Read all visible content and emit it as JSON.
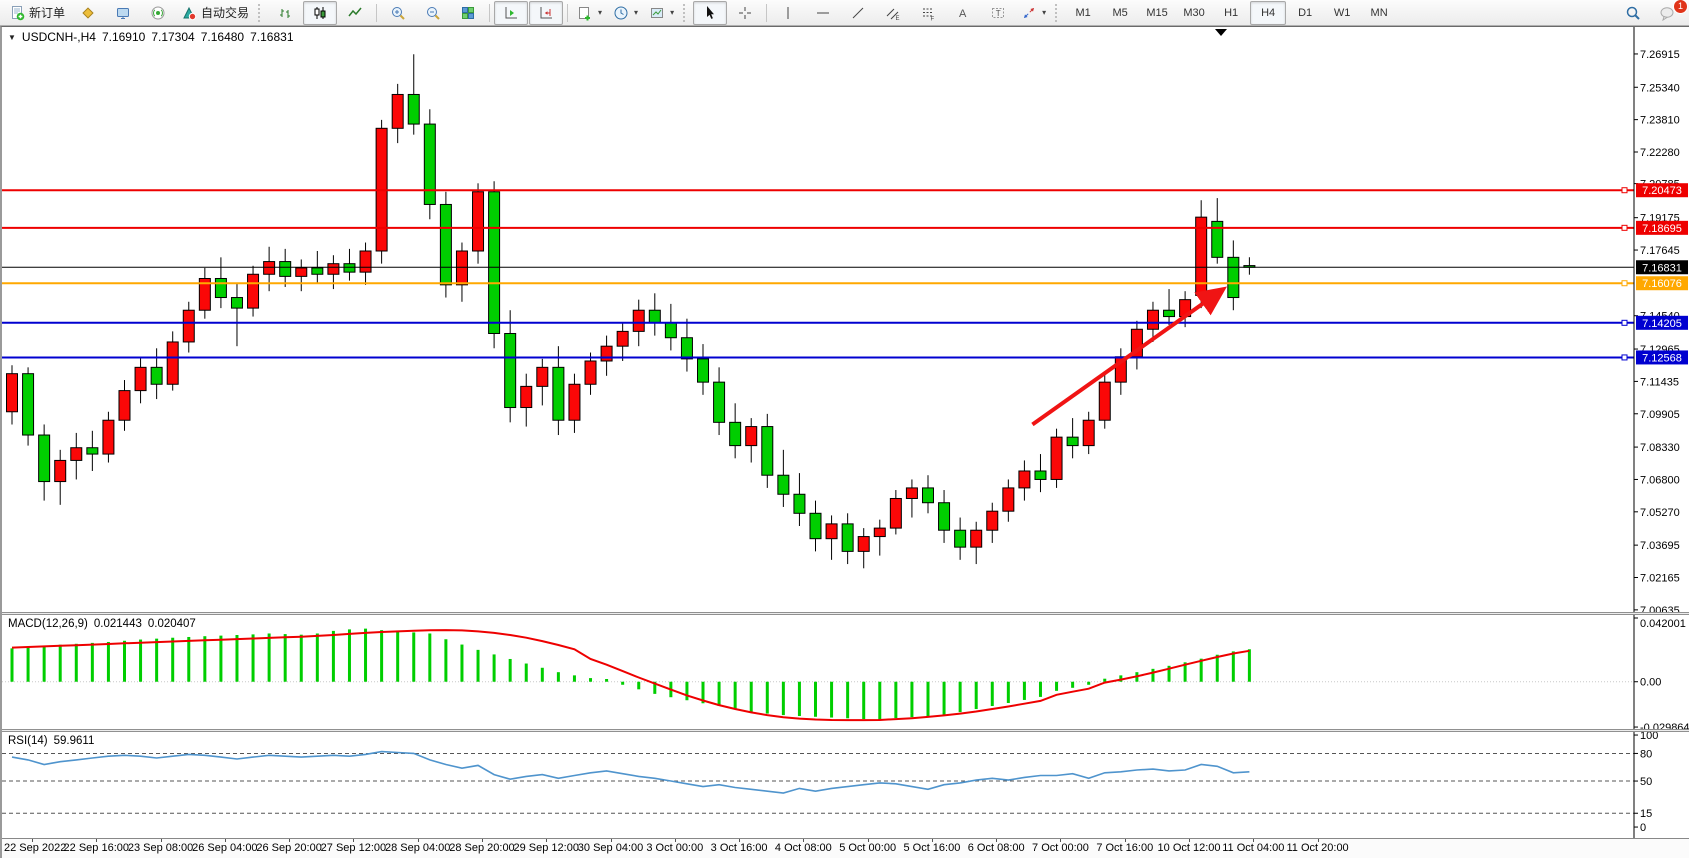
{
  "toolbar": {
    "new_order_label": "新订单",
    "auto_trading_label": "自动交易",
    "timeframes": [
      "M1",
      "M5",
      "M15",
      "M30",
      "H1",
      "H4",
      "D1",
      "W1",
      "MN"
    ],
    "active_timeframe": "H4",
    "notification_badge": "1",
    "icons": {
      "new-order-icon": "document-with-green-plus",
      "market-watch-icon": "gold-diamond",
      "navigator-icon": "blue-monitor",
      "signals-icon": "radio-broadcast",
      "auto-trading-icon": "teal-cone-red-ball",
      "bar-chart-icon": "ohlc-bars",
      "candlestick-chart-icon": "two-candles",
      "line-chart-icon": "zigzag-line",
      "zoom-in-icon": "magnifier-plus",
      "zoom-out-icon": "magnifier-minus",
      "tile-windows-icon": "window-grid",
      "auto-scroll-icon": "axis-green-triangle",
      "chart-shift-icon": "axis-red-arrow",
      "indicators-icon": "frame-green-plus",
      "periods-icon": "clock",
      "templates-icon": "chart-thumbnail",
      "cursor-icon": "pointer-arrow",
      "crosshair-icon": "crosshair",
      "vertical-line-icon": "vertical-bar",
      "horizontal-line-icon": "horizontal-bar",
      "trendline-icon": "diagonal-line",
      "channel-icon": "parallel-lines-E",
      "fibonacci-icon": "dashed-lines-F",
      "text-icon": "letter-A",
      "label-icon": "boxed-T",
      "arrows-icon": "arrow-shapes",
      "search-icon": "magnifier",
      "chat-icon": "speech-bubble-with-badge"
    }
  },
  "chart": {
    "symbol_period": "USDCNH-,H4",
    "ohlc": {
      "open": "7.16910",
      "high": "7.17304",
      "low": "7.16480",
      "close": "7.16831"
    }
  },
  "indicators": {
    "macd": {
      "name": "MACD(12,26,9)",
      "value_main": "0.021443",
      "value_signal": "0.020407"
    },
    "rsi": {
      "name": "RSI(14)",
      "value": "59.9611"
    }
  },
  "chart_data": [
    {
      "type": "candlestick",
      "title": "USDCNH-,H4",
      "ylim": [
        7.00534,
        7.28189
      ],
      "y_ticks": [
        "7.26915",
        "7.25340",
        "7.23810",
        "7.22280",
        "7.20785",
        "7.19175",
        "7.17645",
        "7.14540",
        "7.12965",
        "7.11435",
        "7.09905",
        "7.08330",
        "7.06800",
        "7.05270",
        "7.03695",
        "7.02165",
        "7.00635"
      ],
      "x_labels": [
        "22 Sep 2022",
        "22 Sep 16:00",
        "23 Sep 08:00",
        "26 Sep 04:00",
        "26 Sep 20:00",
        "27 Sep 12:00",
        "28 Sep 04:00",
        "28 Sep 20:00",
        "29 Sep 12:00",
        "30 Sep 04:00",
        "3 Oct 00:00",
        "3 Oct 16:00",
        "4 Oct 08:00",
        "5 Oct 00:00",
        "5 Oct 16:00",
        "6 Oct 08:00",
        "7 Oct 00:00",
        "7 Oct 16:00",
        "10 Oct 12:00",
        "11 Oct 04:00",
        "11 Oct 20:00"
      ],
      "levels": [
        {
          "price": 7.20473,
          "label": "7.20473",
          "color": "#ee0000"
        },
        {
          "price": 7.18695,
          "label": "7.18695",
          "color": "#ee0000"
        },
        {
          "price": 7.16076,
          "label": "7.16076",
          "color": "#ffa800"
        },
        {
          "price": 7.14205,
          "label": "7.14205",
          "color": "#0000d0"
        },
        {
          "price": 7.12568,
          "label": "7.12568",
          "color": "#0000d0"
        }
      ],
      "current_price": {
        "price": 7.16831,
        "label": "7.16831",
        "color": "#000000"
      },
      "arrow": {
        "from_index": 63.5,
        "from_price": 7.094,
        "to_index": 75.2,
        "to_price": 7.157,
        "color": "#f01414"
      },
      "colors": {
        "up": "#fb0707",
        "down": "#00ce00",
        "wick": "#000000"
      },
      "candles": [
        [
          7.1,
          7.122,
          7.094,
          7.118
        ],
        [
          7.118,
          7.121,
          7.084,
          7.089
        ],
        [
          7.089,
          7.094,
          7.058,
          7.067
        ],
        [
          7.067,
          7.082,
          7.056,
          7.077
        ],
        [
          7.077,
          7.09,
          7.068,
          7.083
        ],
        [
          7.083,
          7.091,
          7.072,
          7.08
        ],
        [
          7.08,
          7.1,
          7.076,
          7.096
        ],
        [
          7.096,
          7.115,
          7.091,
          7.11
        ],
        [
          7.11,
          7.126,
          7.104,
          7.121
        ],
        [
          7.121,
          7.13,
          7.106,
          7.113
        ],
        [
          7.113,
          7.138,
          7.11,
          7.133
        ],
        [
          7.133,
          7.152,
          7.128,
          7.148
        ],
        [
          7.148,
          7.168,
          7.144,
          7.163
        ],
        [
          7.163,
          7.173,
          7.149,
          7.154
        ],
        [
          7.154,
          7.161,
          7.131,
          7.149
        ],
        [
          7.149,
          7.169,
          7.145,
          7.165
        ],
        [
          7.165,
          7.178,
          7.157,
          7.171
        ],
        [
          7.171,
          7.177,
          7.159,
          7.164
        ],
        [
          7.164,
          7.172,
          7.157,
          7.168
        ],
        [
          7.168,
          7.176,
          7.161,
          7.165
        ],
        [
          7.165,
          7.174,
          7.158,
          7.17
        ],
        [
          7.17,
          7.177,
          7.162,
          7.166
        ],
        [
          7.166,
          7.18,
          7.16,
          7.176
        ],
        [
          7.176,
          7.238,
          7.17,
          7.234
        ],
        [
          7.234,
          7.255,
          7.227,
          7.25
        ],
        [
          7.25,
          7.269,
          7.231,
          7.236
        ],
        [
          7.236,
          7.243,
          7.191,
          7.198
        ],
        [
          7.198,
          7.204,
          7.154,
          7.16
        ],
        [
          7.16,
          7.18,
          7.152,
          7.176
        ],
        [
          7.176,
          7.208,
          7.17,
          7.204
        ],
        [
          7.204,
          7.209,
          7.13,
          7.137
        ],
        [
          7.137,
          7.148,
          7.095,
          7.102
        ],
        [
          7.102,
          7.118,
          7.093,
          7.112
        ],
        [
          7.112,
          7.125,
          7.103,
          7.121
        ],
        [
          7.121,
          7.131,
          7.089,
          7.096
        ],
        [
          7.096,
          7.118,
          7.09,
          7.113
        ],
        [
          7.113,
          7.128,
          7.108,
          7.124
        ],
        [
          7.124,
          7.136,
          7.117,
          7.131
        ],
        [
          7.131,
          7.142,
          7.124,
          7.138
        ],
        [
          7.138,
          7.153,
          7.131,
          7.148
        ],
        [
          7.148,
          7.156,
          7.136,
          7.142
        ],
        [
          7.142,
          7.151,
          7.129,
          7.135
        ],
        [
          7.135,
          7.144,
          7.119,
          7.125
        ],
        [
          7.125,
          7.132,
          7.108,
          7.114
        ],
        [
          7.114,
          7.121,
          7.089,
          7.095
        ],
        [
          7.095,
          7.104,
          7.078,
          7.084
        ],
        [
          7.084,
          7.097,
          7.076,
          7.093
        ],
        [
          7.093,
          7.099,
          7.064,
          7.07
        ],
        [
          7.07,
          7.082,
          7.055,
          7.061
        ],
        [
          7.061,
          7.071,
          7.046,
          7.052
        ],
        [
          7.052,
          7.058,
          7.034,
          7.04
        ],
        [
          7.04,
          7.051,
          7.03,
          7.047
        ],
        [
          7.047,
          7.052,
          7.028,
          7.034
        ],
        [
          7.034,
          7.045,
          7.026,
          7.041
        ],
        [
          7.041,
          7.049,
          7.032,
          7.045
        ],
        [
          7.045,
          7.063,
          7.042,
          7.059
        ],
        [
          7.059,
          7.068,
          7.05,
          7.064
        ],
        [
          7.064,
          7.07,
          7.052,
          7.057
        ],
        [
          7.057,
          7.063,
          7.038,
          7.044
        ],
        [
          7.044,
          7.05,
          7.03,
          7.036
        ],
        [
          7.036,
          7.048,
          7.028,
          7.044
        ],
        [
          7.044,
          7.057,
          7.038,
          7.053
        ],
        [
          7.053,
          7.068,
          7.048,
          7.064
        ],
        [
          7.064,
          7.077,
          7.058,
          7.072
        ],
        [
          7.072,
          7.08,
          7.062,
          7.068
        ],
        [
          7.068,
          7.092,
          7.064,
          7.088
        ],
        [
          7.088,
          7.097,
          7.078,
          7.084
        ],
        [
          7.084,
          7.1,
          7.08,
          7.096
        ],
        [
          7.096,
          7.118,
          7.092,
          7.114
        ],
        [
          7.114,
          7.13,
          7.108,
          7.126
        ],
        [
          7.126,
          7.143,
          7.12,
          7.139
        ],
        [
          7.139,
          7.152,
          7.133,
          7.148
        ],
        [
          7.148,
          7.158,
          7.141,
          7.145
        ],
        [
          7.145,
          7.157,
          7.14,
          7.153
        ],
        [
          7.155,
          7.2,
          7.149,
          7.192
        ],
        [
          7.19,
          7.201,
          7.17,
          7.173
        ],
        [
          7.173,
          7.181,
          7.148,
          7.154
        ],
        [
          7.1691,
          7.17304,
          7.1648,
          7.16831
        ]
      ]
    },
    {
      "type": "bar",
      "title": "MACD(12,26,9)",
      "ylim": [
        -0.03115,
        0.04398
      ],
      "y_ticks": [
        {
          "v": 0.042001,
          "label": "0.042001"
        },
        {
          "v": 0,
          "label": "0.00"
        },
        {
          "v": -0.029864,
          "label": "-0.029864"
        }
      ],
      "colors": {
        "histogram": "#00ce00",
        "signal": "#ee0000"
      },
      "histogram": [
        0.022,
        0.023,
        0.0238,
        0.0244,
        0.025,
        0.0256,
        0.0262,
        0.027,
        0.0278,
        0.0284,
        0.029,
        0.0295,
        0.03,
        0.0304,
        0.0308,
        0.0312,
        0.0318,
        0.0314,
        0.031,
        0.0318,
        0.0335,
        0.0345,
        0.035,
        0.034,
        0.033,
        0.0325,
        0.0318,
        0.028,
        0.0245,
        0.021,
        0.018,
        0.015,
        0.012,
        0.0092,
        0.0063,
        0.0042,
        0.0024,
        0.0018,
        -0.002,
        -0.005,
        -0.008,
        -0.0102,
        -0.0122,
        -0.0142,
        -0.016,
        -0.018,
        -0.0198,
        -0.021,
        -0.022,
        -0.0226,
        -0.0231,
        -0.0236,
        -0.0241,
        -0.0246,
        -0.025,
        -0.024,
        -0.0234,
        -0.0228,
        -0.022,
        -0.02,
        -0.018,
        -0.016,
        -0.014,
        -0.012,
        -0.01,
        -0.006,
        -0.004,
        -0.002,
        0.002,
        0.0042,
        0.0063,
        0.0085,
        0.0105,
        0.0128,
        0.0152,
        0.0178,
        0.02,
        0.0214
      ],
      "signal": [
        0.0225,
        0.0229,
        0.0233,
        0.0237,
        0.0241,
        0.0245,
        0.0249,
        0.0253,
        0.0257,
        0.0261,
        0.0265,
        0.0269,
        0.0273,
        0.0277,
        0.0281,
        0.0285,
        0.0289,
        0.0293,
        0.0297,
        0.0302,
        0.0308,
        0.0315,
        0.0322,
        0.0328,
        0.0332,
        0.0336,
        0.0339,
        0.034,
        0.0338,
        0.0332,
        0.0322,
        0.0308,
        0.029,
        0.0268,
        0.0242,
        0.0214,
        0.015,
        0.0112,
        0.007,
        0.0028,
        -0.0012,
        -0.0052,
        -0.009,
        -0.0124,
        -0.0154,
        -0.018,
        -0.0202,
        -0.022,
        -0.0234,
        -0.0243,
        -0.0249,
        -0.0252,
        -0.0253,
        -0.0253,
        -0.0252,
        -0.0246,
        -0.024,
        -0.0232,
        -0.0222,
        -0.021,
        -0.0196,
        -0.018,
        -0.0163,
        -0.0145,
        -0.0126,
        -0.0086,
        -0.0066,
        -0.0046,
        -0.0006,
        0.0014,
        0.0036,
        0.006,
        0.0086,
        0.0112,
        0.0138,
        0.0163,
        0.0186,
        0.0204
      ]
    },
    {
      "type": "line",
      "title": "RSI(14)",
      "ylim": [
        -11.9,
        103.3
      ],
      "y_ticks": [
        {
          "v": 100,
          "label": "100"
        },
        {
          "v": 80,
          "label": "80"
        },
        {
          "v": 50,
          "label": "50"
        },
        {
          "v": 15,
          "label": "15"
        },
        {
          "v": 0,
          "label": "0"
        }
      ],
      "level_lines": [
        80,
        50,
        15
      ],
      "color": "#4f94cd",
      "values": [
        76,
        73,
        68,
        71,
        73,
        75,
        77,
        78,
        77,
        75,
        77,
        79,
        78,
        76,
        74,
        76,
        78,
        77,
        76,
        77,
        78,
        77,
        79,
        82,
        81,
        80,
        73,
        68,
        64,
        67,
        57,
        52,
        55,
        57,
        53,
        56,
        59,
        61,
        58,
        55,
        53,
        50,
        47,
        44,
        46,
        43,
        41,
        39,
        37,
        42,
        39,
        42,
        44,
        46,
        48,
        47,
        44,
        41,
        46,
        48,
        51,
        53,
        51,
        54,
        56,
        56,
        58,
        53,
        59,
        60,
        62,
        63,
        61,
        62,
        68,
        66,
        59,
        60
      ]
    }
  ]
}
